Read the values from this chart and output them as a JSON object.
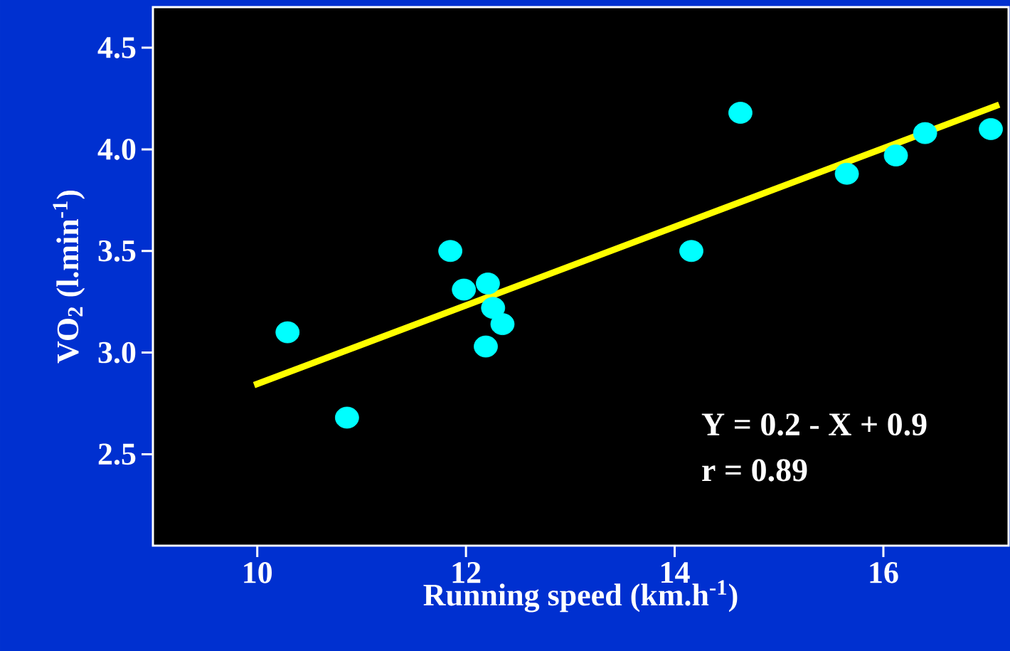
{
  "chart_data": {
    "type": "scatter",
    "xlabel": "Running speed (km.h$^{-1}$)",
    "ylabel": "VO$_{2}$ (l.min$^{-1}$)",
    "annotations": [
      "Y = 0.2 - X + 0.9",
      "r = 0.89"
    ],
    "xlim": [
      9.0,
      17.2
    ],
    "ylim": [
      2.05,
      4.7
    ],
    "xticks": [
      10,
      12,
      14,
      16
    ],
    "yticks": [
      2.5,
      {
        "value": 3,
        "label": "3.0"
      },
      3.5,
      {
        "value": 4,
        "label": "4.0"
      },
      4.5
    ],
    "series": [
      {
        "marker": "circle",
        "color": "#00ffff",
        "x": [
          10.29,
          10.86,
          11.85,
          11.98,
          12.21,
          12.26,
          12.35,
          12.19,
          14.16,
          14.63,
          15.65,
          16.12,
          16.4,
          17.03
        ],
        "values": [
          3.1,
          2.68,
          3.5,
          3.31,
          3.34,
          3.22,
          3.14,
          3.03,
          3.5,
          4.18,
          3.88,
          3.97,
          4.08,
          4.1
        ]
      },
      {
        "type": "line",
        "marker": "none",
        "color": "#ffff00",
        "x": [
          9.97,
          17.11
        ],
        "values": [
          2.84,
          4.22
        ]
      }
    ]
  }
}
